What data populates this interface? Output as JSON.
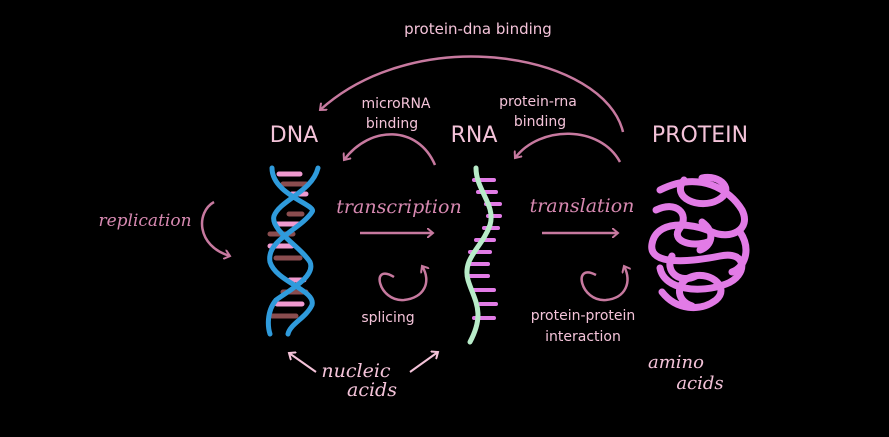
{
  "colors": {
    "background": "#000000",
    "label_text": "#f4c3d9",
    "arrow": "#c7799f",
    "process_text": "#d789b1",
    "dna_blue": "#2f9bdc",
    "rna_green": "#b8ecc9",
    "protein_pink": "#e27be6",
    "rung_pink": "#f09ad0",
    "rung_brown": "#8a4d4f"
  },
  "nodes": {
    "dna": "DNA",
    "rna": "RNA",
    "protein": "PROTEIN"
  },
  "labels": {
    "protein_dna_binding": "protein-dna binding",
    "microrna_binding_1": "microRNA",
    "microrna_binding_2": "binding",
    "protein_rna_binding_1": "protein-rna",
    "protein_rna_binding_2": "binding",
    "replication": "replication",
    "transcription": "transcription",
    "translation": "translation",
    "splicing": "splicing",
    "protein_protein_1": "protein-protein",
    "protein_protein_2": "interaction",
    "nucleic_1": "nucleic",
    "nucleic_2": "acids",
    "amino_1": "amino",
    "amino_2": "acids"
  },
  "icons": {
    "dna": "dna-double-helix-icon",
    "rna": "rna-single-strand-icon",
    "protein": "folded-protein-icon"
  }
}
